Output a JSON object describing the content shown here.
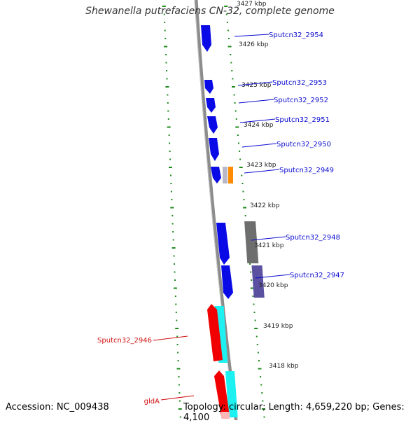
{
  "title": "Shewanella putrefaciens CN-32, complete genome",
  "footer": {
    "accession": "Accession: NC_009438",
    "topology": "Topology: circular; Length: 4,659,220 bp; Genes: 4,100"
  },
  "colors": {
    "backbone": "#8c8c8c",
    "tick": "#1e8a1e",
    "label_blue": "#0a0ad0",
    "label_red": "#d01010",
    "cds_blue": "#0a0ae6",
    "cds_red": "#f00000",
    "cds_cyan": "#1cf0f0",
    "cds_gray": "#6e6e6e",
    "cds_slate": "#5a52a0",
    "cds_orange": "#ff8c00"
  },
  "kbp_labels": [
    "3427 kbp",
    "3426 kbp",
    "3425 kbp",
    "3424 kbp",
    "3423 kbp",
    "3422 kbp",
    "3421 kbp",
    "3420 kbp",
    "3419 kbp",
    "3418 kbp"
  ],
  "genes": [
    {
      "name": "Sputcn32_2954",
      "color": "label_blue"
    },
    {
      "name": "Sputcn32_2953",
      "color": "label_blue"
    },
    {
      "name": "Sputcn32_2952",
      "color": "label_blue"
    },
    {
      "name": "Sputcn32_2951",
      "color": "label_blue"
    },
    {
      "name": "Sputcn32_2950",
      "color": "label_blue"
    },
    {
      "name": "Sputcn32_2949",
      "color": "label_blue"
    },
    {
      "name": "Sputcn32_2948",
      "color": "label_blue"
    },
    {
      "name": "Sputcn32_2947",
      "color": "label_blue"
    },
    {
      "name": "Sputcn32_2946",
      "color": "label_red"
    },
    {
      "name": "gldA",
      "color": "label_red"
    }
  ]
}
